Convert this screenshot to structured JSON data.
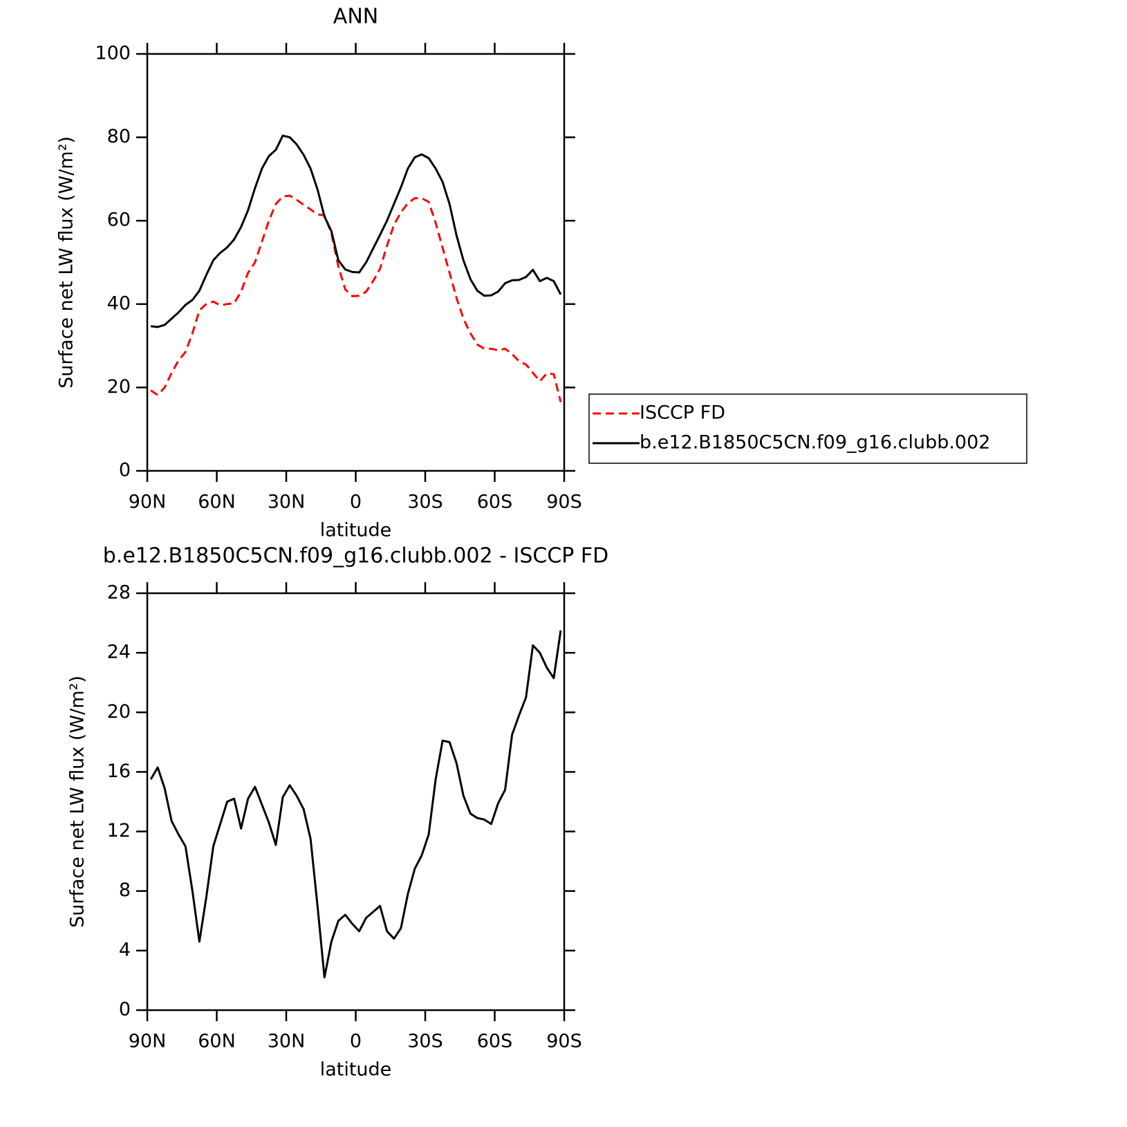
{
  "chart_data": [
    {
      "type": "line",
      "title": "ANN",
      "xlabel": "latitude",
      "ylabel": "Surface net LW flux (W/m²)",
      "x": [
        88.5,
        85.5,
        82.5,
        79.5,
        76.5,
        73.5,
        70.5,
        67.5,
        64.5,
        61.5,
        58.5,
        55.5,
        52.5,
        49.5,
        46.5,
        43.5,
        40.5,
        37.5,
        34.5,
        31.5,
        28.5,
        25.5,
        22.5,
        19.5,
        16.5,
        13.5,
        10.5,
        7.5,
        4.5,
        1.5,
        -1.5,
        -4.5,
        -7.5,
        -10.5,
        -13.5,
        -16.5,
        -19.5,
        -22.5,
        -25.5,
        -28.5,
        -31.5,
        -34.5,
        -37.5,
        -40.5,
        -43.5,
        -46.5,
        -49.5,
        -52.5,
        -55.5,
        -58.5,
        -61.5,
        -64.5,
        -67.5,
        -70.5,
        -73.5,
        -76.5,
        -79.5,
        -82.5,
        -85.5,
        -88.5
      ],
      "series": [
        {
          "name": "ISCCP FD",
          "color": "#ff0000",
          "linestyle": "dashed",
          "values": [
            19.3,
            18.2,
            20,
            23.5,
            26.5,
            28.5,
            33,
            38.5,
            40,
            40.6,
            39.7,
            40,
            40.2,
            43,
            47.5,
            50,
            55,
            60,
            64,
            65.8,
            66,
            65,
            63.8,
            62.7,
            61.5,
            61.3,
            57,
            49,
            43.5,
            41.9,
            42,
            43,
            45.5,
            48.5,
            54,
            59,
            62,
            64.2,
            65.4,
            65.4,
            64.5,
            59.5,
            53.5,
            47.5,
            41.5,
            36.5,
            33,
            30.3,
            29.3,
            29.3,
            28.9,
            29.3,
            28,
            26.3,
            25.5,
            23.5,
            21.5,
            23.4,
            23.2,
            16.5
          ]
        },
        {
          "name": "b.e12.B1850C5CN.f09_g16.clubb.002",
          "color": "#000000",
          "linestyle": "solid",
          "values": [
            34.7,
            34.5,
            35,
            36.5,
            38,
            39.8,
            41,
            43.2,
            47,
            50.5,
            52.3,
            53.6,
            55.5,
            58.5,
            62.5,
            67.8,
            72.5,
            75.5,
            77,
            80.4,
            80,
            78.3,
            75.8,
            72.5,
            67.5,
            61,
            57.5,
            50.5,
            48.3,
            47.7,
            47.6,
            50,
            53.3,
            56.6,
            60,
            64,
            68,
            72.5,
            75.2,
            75.9,
            75,
            72.5,
            69.3,
            64,
            56.5,
            50.5,
            46,
            43.2,
            42,
            42.1,
            43,
            45,
            45.7,
            45.8,
            46.5,
            48.2,
            45.5,
            46.3,
            45.5,
            42.3
          ]
        }
      ],
      "xlim": [
        90,
        -90
      ],
      "xticks": [
        {
          "value": 90,
          "label": "90N"
        },
        {
          "value": 60,
          "label": "60N"
        },
        {
          "value": 30,
          "label": "30N"
        },
        0,
        {
          "value": -30,
          "label": "30S"
        },
        {
          "value": -60,
          "label": "60S"
        },
        {
          "value": -90,
          "label": "90S"
        }
      ],
      "ylim": [
        0,
        100
      ],
      "yticks": [
        0,
        20,
        40,
        60,
        80,
        100
      ],
      "legend": "right"
    },
    {
      "type": "line",
      "title": "b.e12.B1850C5CN.f09_g16.clubb.002 - ISCCP FD",
      "xlabel": "latitude",
      "ylabel": "Surface net LW flux (W/m²)",
      "x": [
        88.5,
        85.5,
        82.5,
        79.5,
        76.5,
        73.5,
        70.5,
        67.5,
        64.5,
        61.5,
        58.5,
        55.5,
        52.5,
        49.5,
        46.5,
        43.5,
        40.5,
        37.5,
        34.5,
        31.5,
        28.5,
        25.5,
        22.5,
        19.5,
        16.5,
        13.5,
        10.5,
        7.5,
        4.5,
        1.5,
        -1.5,
        -4.5,
        -7.5,
        -10.5,
        -13.5,
        -16.5,
        -19.5,
        -22.5,
        -25.5,
        -28.5,
        -31.5,
        -34.5,
        -37.5,
        -40.5,
        -43.5,
        -46.5,
        -49.5,
        -52.5,
        -55.5,
        -58.5,
        -61.5,
        -64.5,
        -67.5,
        -70.5,
        -73.5,
        -76.5,
        -79.5,
        -82.5,
        -85.5,
        -88.5
      ],
      "values": [
        15.5,
        16.3,
        14.9,
        12.7,
        11.8,
        11,
        8,
        4.6,
        7.6,
        11,
        12.5,
        14,
        14.2,
        12.2,
        14.2,
        15,
        13.8,
        12.6,
        11.1,
        14.3,
        15.1,
        14.4,
        13.5,
        11.5,
        7,
        2.2,
        4.6,
        6,
        6.4,
        5.8,
        5.3,
        6.2,
        6.6,
        7,
        5.3,
        4.8,
        5.5,
        7.8,
        9.5,
        10.4,
        11.8,
        15.5,
        18.1,
        18,
        16.6,
        14.4,
        13.2,
        12.9,
        12.8,
        12.5,
        13.9,
        14.8,
        18.5,
        19.8,
        21,
        24.5,
        24,
        23,
        22.3,
        25.5
      ],
      "color": "#000000",
      "xlim": [
        90,
        -90
      ],
      "xticks": [
        {
          "value": 90,
          "label": "90N"
        },
        {
          "value": 60,
          "label": "60N"
        },
        {
          "value": 30,
          "label": "30N"
        },
        0,
        {
          "value": -30,
          "label": "30S"
        },
        {
          "value": -60,
          "label": "60S"
        },
        {
          "value": -90,
          "label": "90S"
        }
      ],
      "ylim": [
        0,
        28
      ],
      "yticks": [
        0,
        4,
        8,
        12,
        16,
        20,
        24,
        28
      ]
    }
  ]
}
